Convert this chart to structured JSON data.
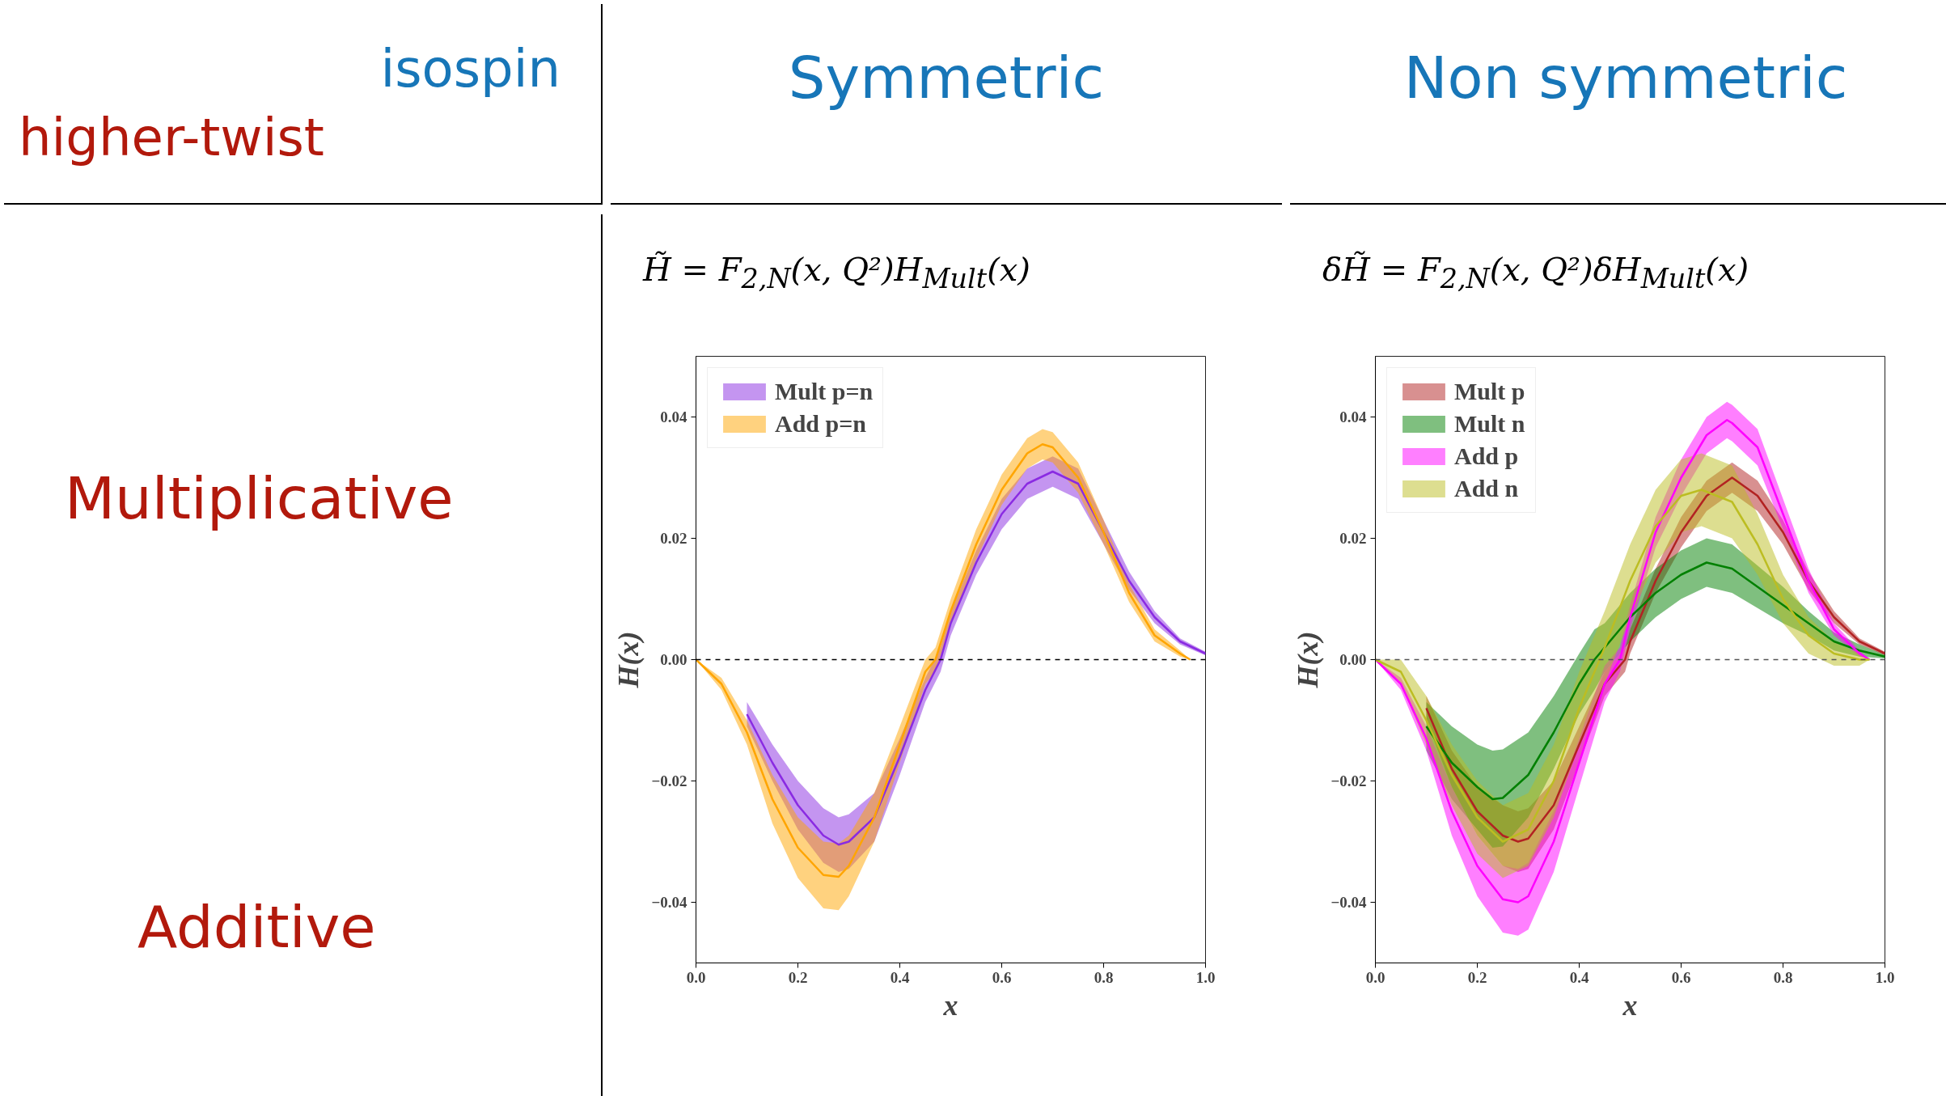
{
  "chart_data": [
    {
      "type": "other",
      "annotations": [
        "isospin",
        "higher-twist",
        "Symmetric",
        "Non symmetric",
        "Multiplicative",
        "Additive"
      ]
    },
    {
      "type": "line",
      "title": "H̃ = F$_{2,N}$(x, Q²)H$_{Mult}$(x)",
      "xlabel": "x",
      "ylabel": "H(x)",
      "xlim": [
        0,
        1
      ],
      "ylim": [
        -0.05,
        0.05
      ],
      "xticks": [
        {
          "value": 0,
          "label": "0.0"
        },
        {
          "value": 0.2,
          "label": "0.2"
        },
        {
          "value": 0.4,
          "label": "0.4"
        },
        {
          "value": 0.6,
          "label": "0.6"
        },
        {
          "value": 0.8,
          "label": "0.8"
        },
        {
          "value": 1,
          "label": "1.0"
        }
      ],
      "yticks": [
        {
          "value": -0.04,
          "label": "−0.04"
        },
        {
          "value": -0.02,
          "label": "−0.02"
        },
        {
          "value": 0,
          "label": "0.00"
        },
        {
          "value": 0.02,
          "label": "0.02"
        },
        {
          "value": 0.04,
          "label": "0.04"
        }
      ],
      "grid": false,
      "legend": "top left",
      "ref_lines": [
        {
          "axis": "y",
          "value": 0,
          "color": "#000000",
          "line_style": "dashed"
        }
      ],
      "series": [
        {
          "name": "Mult p=n",
          "color": "#8a2be2",
          "x": [
            0.1,
            0.15,
            0.2,
            0.25,
            0.28,
            0.3,
            0.35,
            0.4,
            0.45,
            0.48,
            0.5,
            0.55,
            0.6,
            0.65,
            0.7,
            0.75,
            0.8,
            0.85,
            0.9,
            0.95,
            1.0
          ],
          "values": [
            -0.009,
            -0.017,
            -0.024,
            -0.029,
            -0.0305,
            -0.03,
            -0.026,
            -0.016,
            -0.005,
            0.0,
            0.006,
            0.016,
            0.024,
            0.029,
            0.031,
            0.029,
            0.021,
            0.013,
            0.007,
            0.003,
            0.001
          ],
          "lower": [
            -0.011,
            -0.02,
            -0.028,
            -0.0335,
            -0.035,
            -0.0345,
            -0.03,
            -0.019,
            -0.007,
            -0.002,
            0.004,
            0.014,
            0.0215,
            0.0265,
            0.0285,
            0.0265,
            0.019,
            0.0115,
            0.006,
            0.0025,
            0.0007
          ],
          "upper": [
            -0.007,
            -0.014,
            -0.02,
            -0.0245,
            -0.026,
            -0.0255,
            -0.022,
            -0.013,
            -0.003,
            0.002,
            0.008,
            0.018,
            0.0265,
            0.0315,
            0.0335,
            0.0315,
            0.023,
            0.0145,
            0.008,
            0.0035,
            0.0013
          ]
        },
        {
          "name": "Add p=n",
          "color": "#ffa500",
          "x": [
            0,
            0.05,
            0.1,
            0.15,
            0.2,
            0.25,
            0.28,
            0.3,
            0.35,
            0.4,
            0.45,
            0.47,
            0.5,
            0.55,
            0.6,
            0.65,
            0.68,
            0.7,
            0.75,
            0.8,
            0.85,
            0.9,
            0.95,
            0.97
          ],
          "values": [
            0,
            -0.004,
            -0.012,
            -0.023,
            -0.031,
            -0.0355,
            -0.0358,
            -0.034,
            -0.026,
            -0.014,
            -0.002,
            0.0,
            0.008,
            0.019,
            0.028,
            0.034,
            0.0355,
            0.035,
            0.03,
            0.021,
            0.011,
            0.004,
            0.001,
            0.0
          ],
          "lower": [
            0,
            -0.005,
            -0.014,
            -0.027,
            -0.036,
            -0.041,
            -0.0413,
            -0.039,
            -0.03,
            -0.017,
            -0.004,
            -0.002,
            0.006,
            0.0165,
            0.0255,
            0.0315,
            0.033,
            0.0325,
            0.0275,
            0.019,
            0.0095,
            0.003,
            0.0005,
            0.0
          ],
          "upper": [
            0,
            -0.003,
            -0.01,
            -0.019,
            -0.026,
            -0.03,
            -0.0303,
            -0.029,
            -0.022,
            -0.011,
            0.0,
            0.002,
            0.01,
            0.0215,
            0.0305,
            0.0365,
            0.038,
            0.0375,
            0.0325,
            0.023,
            0.0125,
            0.005,
            0.0015,
            0.0
          ]
        }
      ]
    },
    {
      "type": "line",
      "title": "δH̃ = F$_{2,N}$(x, Q²)δH$_{Mult}$(x)",
      "xlabel": "x",
      "ylabel": "H(x)",
      "xlim": [
        0,
        1
      ],
      "ylim": [
        -0.05,
        0.05
      ],
      "xticks": [
        {
          "value": 0,
          "label": "0.0"
        },
        {
          "value": 0.2,
          "label": "0.2"
        },
        {
          "value": 0.4,
          "label": "0.4"
        },
        {
          "value": 0.6,
          "label": "0.6"
        },
        {
          "value": 0.8,
          "label": "0.8"
        },
        {
          "value": 1,
          "label": "1.0"
        }
      ],
      "yticks": [
        {
          "value": -0.04,
          "label": "−0.04"
        },
        {
          "value": -0.02,
          "label": "−0.02"
        },
        {
          "value": 0,
          "label": "0.00"
        },
        {
          "value": 0.02,
          "label": "0.02"
        },
        {
          "value": 0.04,
          "label": "0.04"
        }
      ],
      "grid": false,
      "legend": "top left",
      "ref_lines": [
        {
          "axis": "y",
          "value": 0,
          "color": "#555555",
          "line_style": "dashed"
        }
      ],
      "series": [
        {
          "name": "Mult p",
          "color": "#b22222",
          "x": [
            0.1,
            0.15,
            0.2,
            0.25,
            0.28,
            0.3,
            0.35,
            0.4,
            0.45,
            0.49,
            0.5,
            0.55,
            0.6,
            0.65,
            0.7,
            0.75,
            0.8,
            0.85,
            0.9,
            0.95,
            1.0
          ],
          "values": [
            -0.008,
            -0.018,
            -0.025,
            -0.029,
            -0.03,
            -0.0295,
            -0.024,
            -0.014,
            -0.004,
            0.0,
            0.003,
            0.013,
            0.021,
            0.027,
            0.03,
            0.027,
            0.021,
            0.013,
            0.007,
            0.003,
            0.001
          ],
          "lower": [
            -0.01,
            -0.021,
            -0.029,
            -0.034,
            -0.035,
            -0.0345,
            -0.028,
            -0.017,
            -0.006,
            -0.002,
            0.001,
            0.011,
            0.0185,
            0.0245,
            0.0275,
            0.0245,
            0.019,
            0.0115,
            0.006,
            0.0025,
            0.0007
          ],
          "upper": [
            -0.006,
            -0.015,
            -0.021,
            -0.024,
            -0.025,
            -0.0245,
            -0.02,
            -0.011,
            -0.002,
            0.002,
            0.005,
            0.015,
            0.0235,
            0.0295,
            0.0325,
            0.0295,
            0.023,
            0.0145,
            0.008,
            0.0035,
            0.0013
          ]
        },
        {
          "name": "Mult n",
          "color": "#008000",
          "x": [
            0.1,
            0.15,
            0.2,
            0.23,
            0.25,
            0.3,
            0.35,
            0.4,
            0.43,
            0.45,
            0.5,
            0.55,
            0.6,
            0.65,
            0.7,
            0.75,
            0.8,
            0.85,
            0.9,
            0.95,
            1.0
          ],
          "values": [
            -0.011,
            -0.017,
            -0.021,
            -0.023,
            -0.0228,
            -0.019,
            -0.012,
            -0.004,
            0.0,
            0.002,
            0.007,
            0.011,
            0.014,
            0.016,
            0.015,
            0.012,
            0.009,
            0.006,
            0.003,
            0.0015,
            0.0005
          ],
          "lower": [
            -0.015,
            -0.023,
            -0.028,
            -0.031,
            -0.0308,
            -0.026,
            -0.018,
            -0.009,
            -0.005,
            -0.002,
            0.003,
            0.007,
            0.01,
            0.012,
            0.011,
            0.0085,
            0.006,
            0.004,
            0.0015,
            0.0005,
            0.0002
          ],
          "upper": [
            -0.007,
            -0.011,
            -0.014,
            -0.015,
            -0.0148,
            -0.012,
            -0.006,
            0.001,
            0.005,
            0.006,
            0.011,
            0.015,
            0.018,
            0.02,
            0.019,
            0.0155,
            0.012,
            0.008,
            0.0045,
            0.0025,
            0.0008
          ]
        },
        {
          "name": "Add p",
          "color": "#ff00ff",
          "x": [
            0,
            0.05,
            0.1,
            0.15,
            0.2,
            0.25,
            0.28,
            0.3,
            0.35,
            0.4,
            0.45,
            0.48,
            0.5,
            0.55,
            0.6,
            0.65,
            0.69,
            0.7,
            0.75,
            0.8,
            0.85,
            0.9,
            0.95,
            0.97
          ],
          "values": [
            0,
            -0.004,
            -0.013,
            -0.025,
            -0.034,
            -0.0395,
            -0.04,
            -0.039,
            -0.03,
            -0.017,
            -0.004,
            0.0,
            0.007,
            0.021,
            0.03,
            0.037,
            0.0395,
            0.039,
            0.035,
            0.024,
            0.013,
            0.005,
            0.001,
            0.0
          ],
          "lower": [
            0,
            -0.005,
            -0.015,
            -0.029,
            -0.039,
            -0.045,
            -0.0455,
            -0.0445,
            -0.035,
            -0.021,
            -0.007,
            -0.002,
            0.005,
            0.0185,
            0.027,
            0.034,
            0.0365,
            0.036,
            0.032,
            0.0215,
            0.011,
            0.004,
            0.0005,
            0.0
          ],
          "upper": [
            0,
            -0.003,
            -0.011,
            -0.021,
            -0.029,
            -0.034,
            -0.0345,
            -0.0335,
            -0.025,
            -0.013,
            -0.001,
            0.002,
            0.009,
            0.0235,
            0.033,
            0.04,
            0.0425,
            0.042,
            0.038,
            0.0265,
            0.015,
            0.006,
            0.0015,
            0.0
          ]
        },
        {
          "name": "Add n",
          "color": "#bcbd22",
          "x": [
            0,
            0.05,
            0.1,
            0.15,
            0.2,
            0.25,
            0.3,
            0.35,
            0.4,
            0.44,
            0.45,
            0.5,
            0.55,
            0.6,
            0.64,
            0.7,
            0.75,
            0.8,
            0.85,
            0.9,
            0.95,
            0.97
          ],
          "values": [
            0,
            -0.002,
            -0.01,
            -0.019,
            -0.026,
            -0.03,
            -0.028,
            -0.02,
            -0.008,
            0.0,
            0.002,
            0.013,
            0.022,
            0.027,
            0.028,
            0.026,
            0.019,
            0.01,
            0.004,
            0.001,
            0.0,
            0.0
          ],
          "lower": [
            0,
            -0.004,
            -0.014,
            -0.024,
            -0.032,
            -0.036,
            -0.034,
            -0.026,
            -0.014,
            -0.006,
            -0.004,
            0.007,
            0.016,
            0.021,
            0.022,
            0.02,
            0.014,
            0.006,
            0.001,
            -0.001,
            -0.001,
            0.0
          ],
          "upper": [
            0,
            0.0,
            -0.006,
            -0.014,
            -0.02,
            -0.024,
            -0.022,
            -0.014,
            -0.002,
            0.006,
            0.008,
            0.019,
            0.028,
            0.033,
            0.034,
            0.032,
            0.024,
            0.014,
            0.007,
            0.003,
            0.001,
            0.0
          ]
        }
      ]
    }
  ]
}
